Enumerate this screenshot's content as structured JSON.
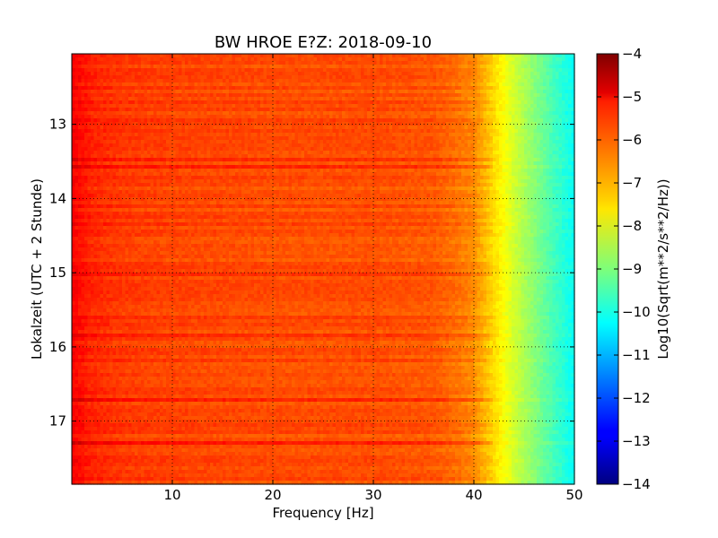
{
  "chart_data": {
    "type": "heatmap",
    "title": "BW HROE E?Z: 2018-09-10",
    "xlabel": "Frequency [Hz]",
    "ylabel": "Lokalzeit (UTC + 2 Stunde)",
    "xlim": [
      0,
      50
    ],
    "ylim": [
      12.05,
      17.85
    ],
    "y_inverted": true,
    "grid": true,
    "x_ticks": [
      10,
      20,
      30,
      40,
      50
    ],
    "x_tick_labels": [
      "10",
      "20",
      "30",
      "40",
      "50"
    ],
    "y_ticks": [
      13,
      14,
      15,
      16,
      17
    ],
    "y_tick_labels": [
      "13",
      "14",
      "15",
      "16",
      "17"
    ],
    "frequency_profile": {
      "freq_hz": [
        0,
        2,
        5,
        10,
        20,
        30,
        36,
        38,
        40,
        42,
        44,
        46,
        48,
        50
      ],
      "log10_amplitude": [
        -5.2,
        -5.6,
        -5.8,
        -5.9,
        -6.0,
        -6.0,
        -6.1,
        -6.3,
        -6.6,
        -7.4,
        -8.2,
        -8.9,
        -9.6,
        -10.2
      ]
    },
    "colorbar": {
      "label": "Log10(Sqrt(m**2/s**2/Hz))",
      "range": [
        -14,
        -4
      ],
      "ticks": [
        -4,
        -5,
        -6,
        -7,
        -8,
        -9,
        -10,
        -11,
        -12,
        -13,
        -14
      ],
      "tick_labels": [
        "−4",
        "−5",
        "−6",
        "−7",
        "−8",
        "−9",
        "−10",
        "−11",
        "−12",
        "−13",
        "−14"
      ],
      "colormap": "jet"
    }
  }
}
